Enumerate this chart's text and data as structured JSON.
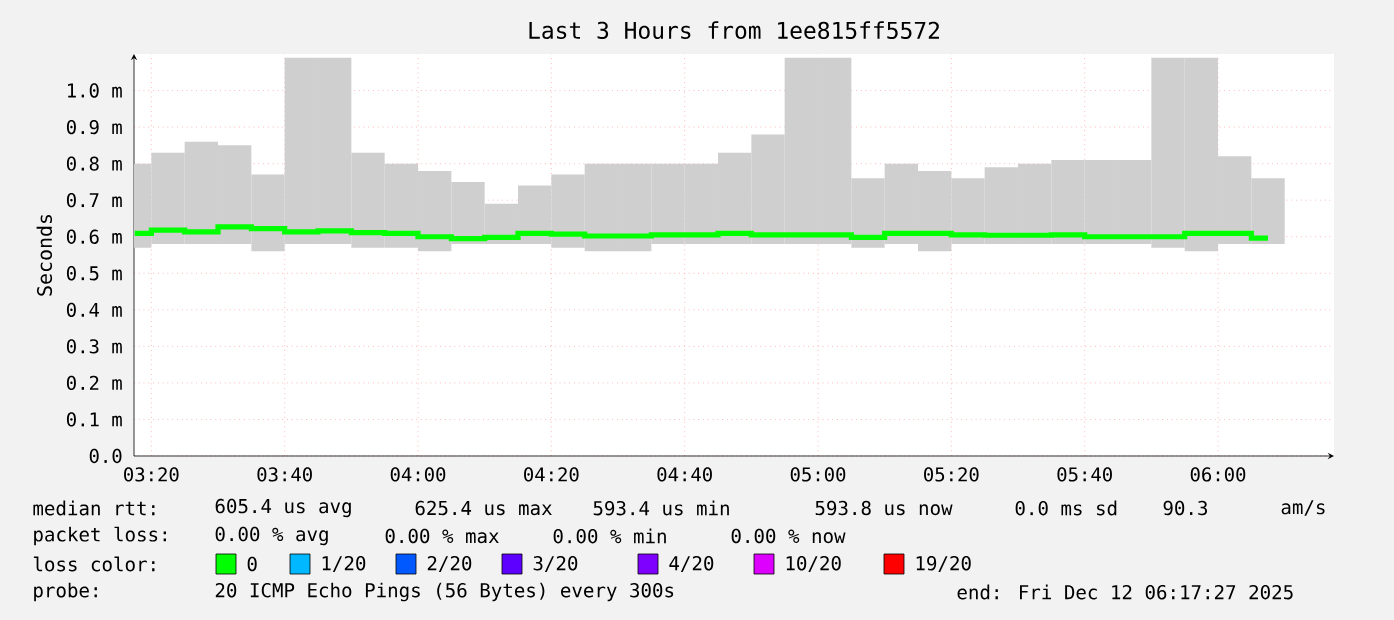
{
  "chart_data": {
    "type": "bar",
    "title": "Last 3 Hours from 1ee815ff5572",
    "ylabel": "Seconds",
    "xlim": [
      3.29,
      6.29
    ],
    "xticks": [
      {
        "value": 3.3333,
        "label": "03:20"
      },
      {
        "value": 3.6667,
        "label": "03:40"
      },
      {
        "value": 4.0,
        "label": "04:00"
      },
      {
        "value": 4.3333,
        "label": "04:20"
      },
      {
        "value": 4.6667,
        "label": "04:40"
      },
      {
        "value": 5.0,
        "label": "05:00"
      },
      {
        "value": 5.3333,
        "label": "05:20"
      },
      {
        "value": 5.6667,
        "label": "05:40"
      },
      {
        "value": 6.0,
        "label": "06:00"
      }
    ],
    "ylim": [
      0,
      1.1
    ],
    "yticks": [
      {
        "value": 0.0,
        "label": "0.0"
      },
      {
        "value": 0.1,
        "label": "0.1 m"
      },
      {
        "value": 0.2,
        "label": "0.2 m"
      },
      {
        "value": 0.3,
        "label": "0.3 m"
      },
      {
        "value": 0.4,
        "label": "0.4 m"
      },
      {
        "value": 0.5,
        "label": "0.5 m"
      },
      {
        "value": 0.6,
        "label": "0.6 m"
      },
      {
        "value": 0.7,
        "label": "0.7 m"
      },
      {
        "value": 0.8,
        "label": "0.8 m"
      },
      {
        "value": 0.9,
        "label": "0.9 m"
      },
      {
        "value": 1.0,
        "label": "1.0 m"
      }
    ],
    "grid": true,
    "legend": "bottom",
    "legend_title": "loss color:",
    "x": [
      3.2917,
      3.375,
      3.4583,
      3.5417,
      3.625,
      3.7083,
      3.7917,
      3.875,
      3.9583,
      4.0417,
      4.125,
      4.2083,
      4.2917,
      4.375,
      4.4583,
      4.5417,
      4.625,
      4.7083,
      4.7917,
      4.875,
      4.9583,
      5.0417,
      5.125,
      5.2083,
      5.2917,
      5.375,
      5.4583,
      5.5417,
      5.625,
      5.7083,
      5.7917,
      5.875,
      5.9583,
      6.0417,
      6.125
    ],
    "series": [
      {
        "color": "#cfcfcf",
        "base": [
          0.57,
          0.58,
          0.58,
          0.58,
          0.56,
          0.58,
          0.58,
          0.57,
          0.57,
          0.56,
          0.58,
          0.58,
          0.58,
          0.57,
          0.56,
          0.56,
          0.58,
          0.58,
          0.58,
          0.58,
          0.58,
          0.58,
          0.57,
          0.58,
          0.56,
          0.58,
          0.58,
          0.58,
          0.58,
          0.58,
          0.58,
          0.57,
          0.56,
          0.58,
          0.58
        ],
        "values": [
          0.23,
          0.25,
          0.28,
          0.27,
          0.21,
          0.51,
          0.51,
          0.26,
          0.23,
          0.22,
          0.17,
          0.11,
          0.16,
          0.2,
          0.24,
          0.24,
          0.22,
          0.22,
          0.25,
          0.3,
          0.51,
          0.51,
          0.19,
          0.22,
          0.22,
          0.18,
          0.21,
          0.22,
          0.23,
          0.23,
          0.23,
          0.52,
          0.53,
          0.24,
          0.18
        ]
      },
      {
        "type": "step",
        "name": "0",
        "color": "#00ff00",
        "values": [
          0.609,
          0.618,
          0.613,
          0.627,
          0.622,
          0.613,
          0.616,
          0.611,
          0.609,
          0.6,
          0.595,
          0.598,
          0.609,
          0.607,
          0.602,
          0.602,
          0.605,
          0.605,
          0.609,
          0.605,
          0.605,
          0.605,
          0.598,
          0.609,
          0.609,
          0.605,
          0.604,
          0.604,
          0.605,
          0.6,
          0.6,
          0.6,
          0.609,
          0.609,
          0.596
        ]
      },
      {
        "type": "line",
        "name": "1/20",
        "color": "#00b8ff",
        "values": [
          null,
          null,
          null,
          null,
          null,
          null,
          null,
          null,
          null,
          null,
          null,
          null,
          null,
          null,
          null,
          null,
          null,
          null,
          null,
          null,
          null,
          null,
          null,
          null,
          null,
          null,
          null,
          null,
          null,
          null,
          null,
          null,
          null,
          null,
          null
        ]
      },
      {
        "type": "line",
        "name": "2/20",
        "color": "#0059ff",
        "values": [
          null,
          null,
          null,
          null,
          null,
          null,
          null,
          null,
          null,
          null,
          null,
          null,
          null,
          null,
          null,
          null,
          null,
          null,
          null,
          null,
          null,
          null,
          null,
          null,
          null,
          null,
          null,
          null,
          null,
          null,
          null,
          null,
          null,
          null,
          null
        ]
      },
      {
        "type": "line",
        "name": "3/20",
        "color": "#5e00ff",
        "values": [
          null,
          null,
          null,
          null,
          null,
          null,
          null,
          null,
          null,
          null,
          null,
          null,
          null,
          null,
          null,
          null,
          null,
          null,
          null,
          null,
          null,
          null,
          null,
          null,
          null,
          null,
          null,
          null,
          null,
          null,
          null,
          null,
          null,
          null,
          null
        ]
      },
      {
        "type": "line",
        "name": "4/20",
        "color": "#7e00ff",
        "values": [
          null,
          null,
          null,
          null,
          null,
          null,
          null,
          null,
          null,
          null,
          null,
          null,
          null,
          null,
          null,
          null,
          null,
          null,
          null,
          null,
          null,
          null,
          null,
          null,
          null,
          null,
          null,
          null,
          null,
          null,
          null,
          null,
          null,
          null,
          null
        ]
      },
      {
        "type": "line",
        "name": "10/20",
        "color": "#dd00ff",
        "values": [
          null,
          null,
          null,
          null,
          null,
          null,
          null,
          null,
          null,
          null,
          null,
          null,
          null,
          null,
          null,
          null,
          null,
          null,
          null,
          null,
          null,
          null,
          null,
          null,
          null,
          null,
          null,
          null,
          null,
          null,
          null,
          null,
          null,
          null,
          null
        ]
      },
      {
        "type": "line",
        "name": "19/20",
        "color": "#ff0000",
        "values": [
          null,
          null,
          null,
          null,
          null,
          null,
          null,
          null,
          null,
          null,
          null,
          null,
          null,
          null,
          null,
          null,
          null,
          null,
          null,
          null,
          null,
          null,
          null,
          null,
          null,
          null,
          null,
          null,
          null,
          null,
          null,
          null,
          null,
          null,
          null
        ]
      }
    ],
    "annotations": [
      "median rtt:",
      "605.4 us avg",
      "625.4 us max",
      "593.4 us min",
      "593.8 us now",
      "0.0 ms sd",
      "90.3",
      "am/s",
      "packet loss:",
      "0.00 % avg",
      "0.00 % max",
      "0.00 % min",
      "0.00 % now",
      "probe:",
      "20 ICMP Echo Pings (56 Bytes) every 300s",
      "end: Fri Dec 12 06:17:27 2025"
    ]
  }
}
